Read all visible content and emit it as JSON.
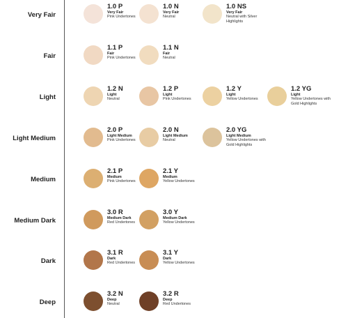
{
  "rows": [
    {
      "label": "Very Fair",
      "shades": [
        {
          "code": "1.0 P",
          "tone": "Very Fair",
          "note": "Pink Undertones",
          "color": "#f4e3d9"
        },
        {
          "code": "1.0 N",
          "tone": "Very Fair",
          "note": "Neutral",
          "color": "#f4e2d1"
        },
        {
          "code": "1.0 NS",
          "tone": "Very Fair",
          "note": "Neutral with Silver Highlights",
          "color": "#f2e4ca"
        }
      ]
    },
    {
      "label": "Fair",
      "shades": [
        {
          "code": "1.1 P",
          "tone": "Fair",
          "note": "Pink Undertones",
          "color": "#f1d9c3"
        },
        {
          "code": "1.1 N",
          "tone": "Fair",
          "note": "Neutral",
          "color": "#f1dcbf"
        }
      ]
    },
    {
      "label": "Light",
      "shades": [
        {
          "code": "1.2 N",
          "tone": "Light",
          "note": "Neutral",
          "color": "#eed5b2"
        },
        {
          "code": "1.2 P",
          "tone": "Light",
          "note": "Pink Undertones",
          "color": "#e8c6a4"
        },
        {
          "code": "1.2 Y",
          "tone": "Light",
          "note": "Yellow Undertones",
          "color": "#ecd1a1"
        },
        {
          "code": "1.2 YG",
          "tone": "Light",
          "note": "Yellow Undertones with Gold Highlights",
          "color": "#e9cf9b"
        }
      ]
    },
    {
      "label": "Light Medium",
      "shades": [
        {
          "code": "2.0 P",
          "tone": "Light Medium",
          "note": "Pink Undertones",
          "color": "#e2bb8f"
        },
        {
          "code": "2.0 N",
          "tone": "Light Medium",
          "note": "Neutral",
          "color": "#e8cca4"
        },
        {
          "code": "2.0 YG",
          "tone": "Light Medium",
          "note": "Yellow Undertones with Gold Highlights",
          "color": "#dcc39c"
        }
      ]
    },
    {
      "label": "Medium",
      "shades": [
        {
          "code": "2.1 P",
          "tone": "Medium",
          "note": "Pink Undertones",
          "color": "#dcaf72"
        },
        {
          "code": "2.1 Y",
          "tone": "Medium",
          "note": "Yellow Undertones",
          "color": "#dea663"
        }
      ]
    },
    {
      "label": "Medium Dark",
      "shades": [
        {
          "code": "3.0 R",
          "tone": "Medium Dark",
          "note": "Red Undertones",
          "color": "#d09a5d"
        },
        {
          "code": "3.0 Y",
          "tone": "Medium Dark",
          "note": "Yellow Undertones",
          "color": "#d2a062"
        }
      ]
    },
    {
      "label": "Dark",
      "shades": [
        {
          "code": "3.1 R",
          "tone": "Dark",
          "note": "Red Undertones",
          "color": "#b2764a"
        },
        {
          "code": "3.1 Y",
          "tone": "Dark",
          "note": "Yellow Undertones",
          "color": "#c88d54"
        }
      ]
    },
    {
      "label": "Deep",
      "shades": [
        {
          "code": "3.2 N",
          "tone": "Deep",
          "note": "Neutral",
          "color": "#7d4f2f"
        },
        {
          "code": "3.2 R",
          "tone": "Deep",
          "note": "Red Undertones",
          "color": "#6f4027"
        }
      ]
    }
  ]
}
